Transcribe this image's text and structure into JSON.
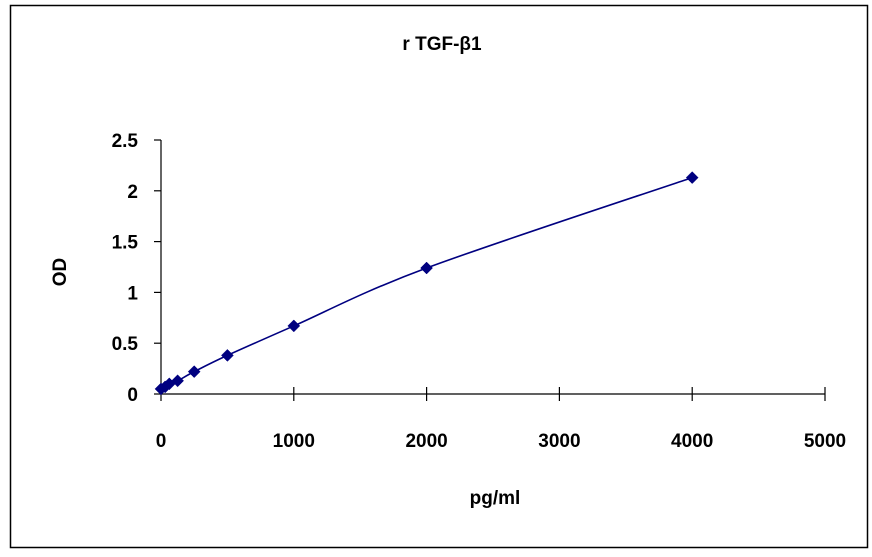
{
  "chart_data": {
    "type": "scatter",
    "title": "r TGF-β1",
    "xlabel": "pg/ml",
    "ylabel": "OD",
    "xlim": [
      0,
      5000
    ],
    "ylim": [
      0,
      2.5
    ],
    "xticks": [
      0,
      1000,
      2000,
      3000,
      4000,
      5000
    ],
    "yticks": [
      0,
      0.5,
      1,
      1.5,
      2,
      2.5
    ],
    "xtick_labels": [
      "0",
      "1000",
      "2000",
      "3000",
      "4000",
      "5000"
    ],
    "ytick_labels": [
      "0",
      "0.5",
      "1",
      "1.5",
      "2",
      "2.5"
    ],
    "grid": false,
    "legend": "none",
    "trendline": "smooth curve through points",
    "series": [
      {
        "color": "#000080",
        "marker": "diamond",
        "x": [
          0,
          31.25,
          62.5,
          125,
          250,
          500,
          1000,
          2000,
          4000
        ],
        "y": [
          0.05,
          0.07,
          0.1,
          0.13,
          0.22,
          0.38,
          0.67,
          1.24,
          2.13
        ]
      }
    ]
  }
}
